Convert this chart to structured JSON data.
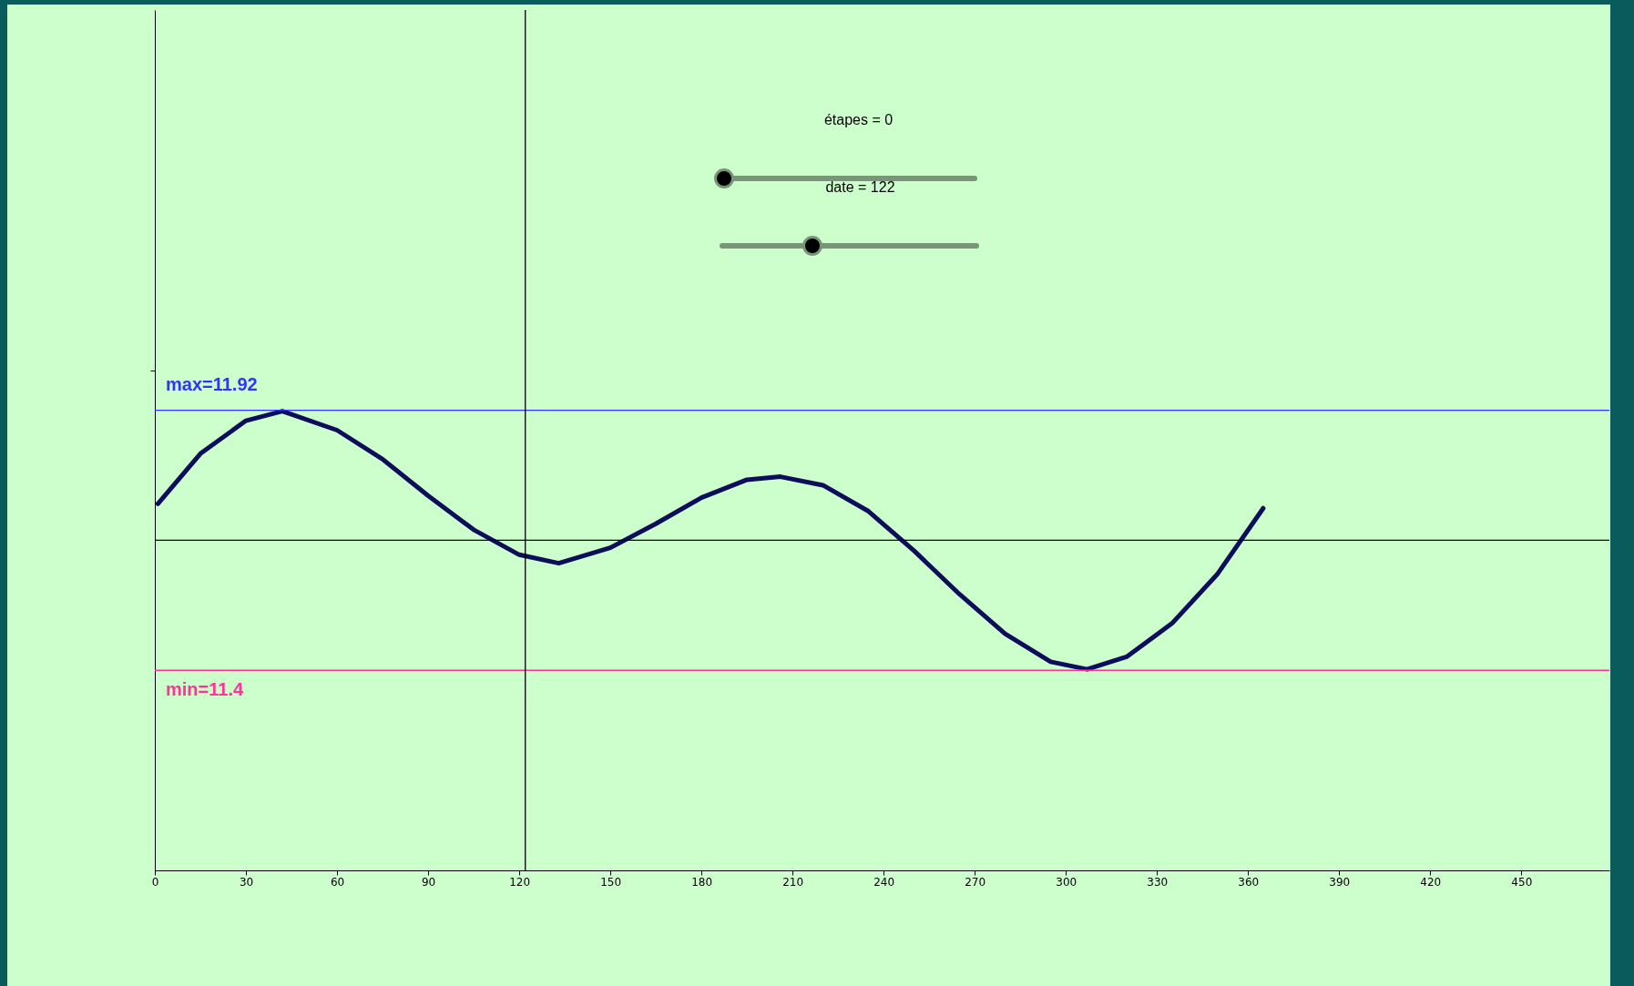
{
  "chart_data": {
    "type": "line",
    "x": [
      1,
      15,
      30,
      42,
      60,
      75,
      90,
      105,
      120,
      133,
      150,
      165,
      180,
      195,
      206,
      220,
      235,
      250,
      265,
      280,
      295,
      307,
      320,
      335,
      350,
      365
    ],
    "series": [
      {
        "color": "#0d0d5c",
        "values": [
          11.733,
          11.833,
          11.899,
          11.918,
          11.88,
          11.822,
          11.749,
          11.681,
          11.631,
          11.614,
          11.645,
          11.693,
          11.745,
          11.781,
          11.787,
          11.77,
          11.718,
          11.639,
          11.552,
          11.473,
          11.417,
          11.402,
          11.427,
          11.494,
          11.593,
          11.724
        ]
      }
    ],
    "xlim": [
      0,
      479
    ],
    "xticks": [
      0,
      30,
      60,
      90,
      120,
      150,
      180,
      210,
      240,
      270,
      300,
      330,
      360,
      390,
      420,
      450
    ],
    "ylim": [
      11,
      12.72
    ],
    "yticks": [
      {
        "value": 12,
        "label": null
      }
    ],
    "tick_labels": "x",
    "grid": false,
    "marker": "none",
    "line_style": "solid",
    "ref_lines": [
      {
        "axis": "y",
        "value": 11.92,
        "label": "max=11.92",
        "color": "#3333ff"
      },
      {
        "axis": "y",
        "value": 11.4,
        "label": "min=11.4",
        "color": "#ff3399"
      },
      {
        "axis": "y",
        "value": 11.66,
        "label": null,
        "color": "#000000"
      },
      {
        "axis": "x",
        "value": 122,
        "label": null,
        "color": "#000000"
      }
    ],
    "annotations": [
      "étapes = 0",
      "date = 122"
    ]
  }
}
